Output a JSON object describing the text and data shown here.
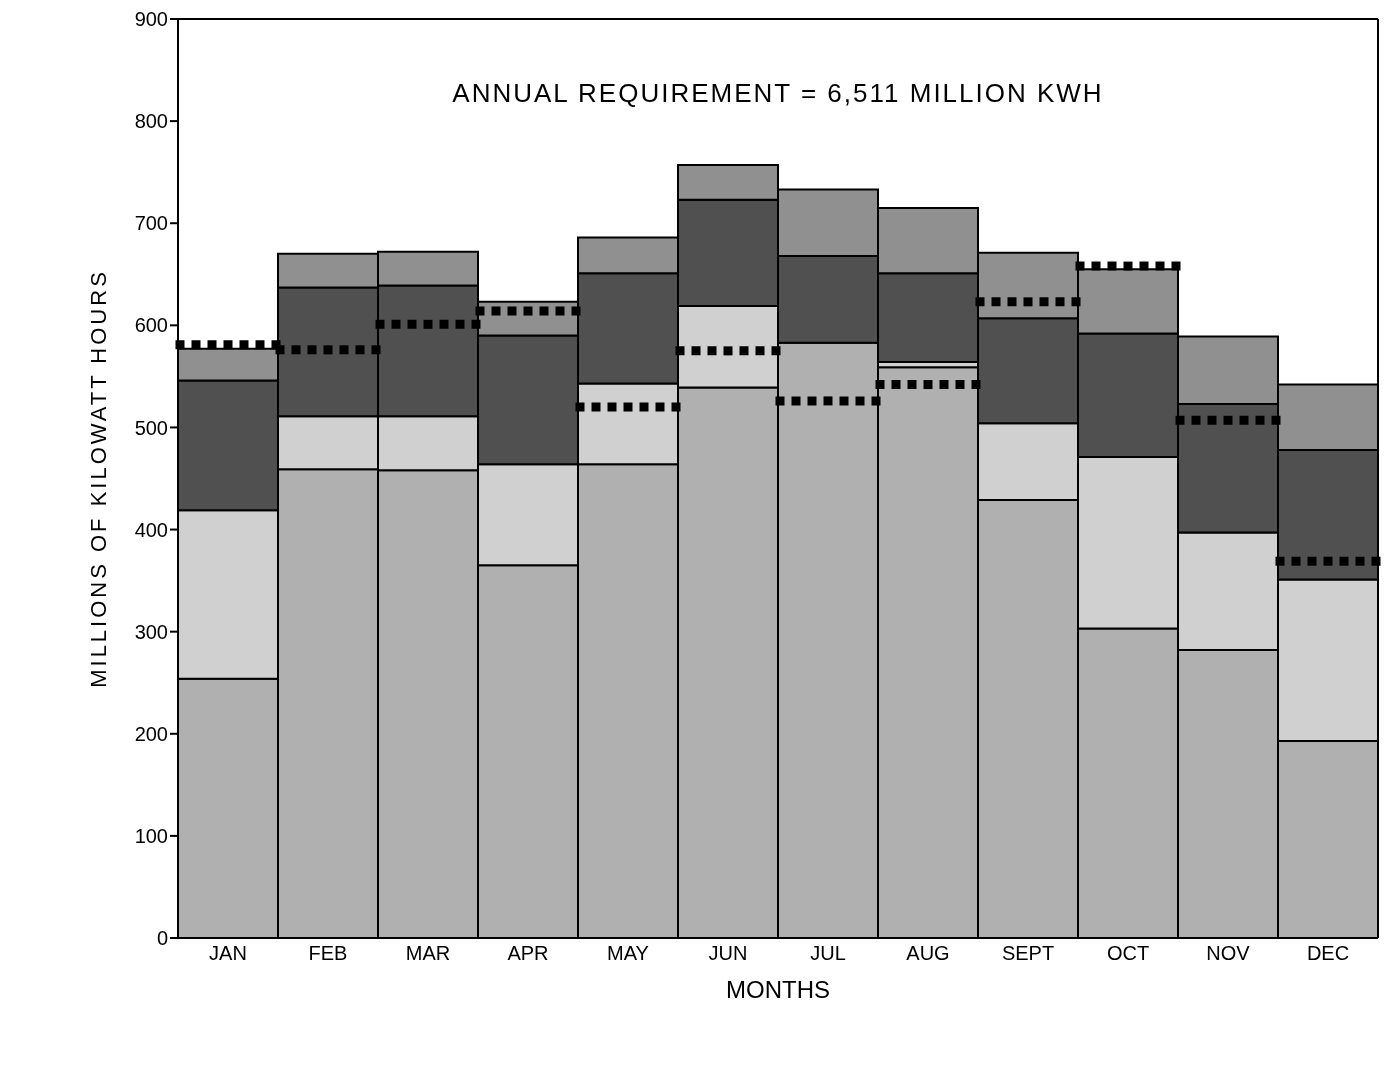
{
  "chart_data": {
    "type": "bar",
    "stacked": true,
    "xlabel": "MONTHS",
    "ylabel": "MILLIONS OF KILOWATT HOURS",
    "annotations": [
      "ANNUAL REQUIREMENT = 6,511 MILLION KWH"
    ],
    "categories": [
      "JAN",
      "FEB",
      "MAR",
      "APR",
      "MAY",
      "JUN",
      "JUL",
      "AUG",
      "SEPT",
      "OCT",
      "NOV",
      "DEC"
    ],
    "ylim": [
      0,
      900
    ],
    "yticks": [
      0,
      100,
      200,
      300,
      400,
      500,
      600,
      700,
      800,
      900
    ],
    "series": [
      {
        "color": "#b0b0b0",
        "values": [
          254,
          459,
          458,
          365,
          464,
          539,
          583,
          559,
          429,
          303,
          282,
          193
        ]
      },
      {
        "color": "#d0d0d0",
        "values": [
          165,
          52,
          53,
          99,
          79,
          80,
          0,
          5,
          75,
          168,
          115,
          158
        ]
      },
      {
        "color": "#505050",
        "values": [
          127,
          126,
          128,
          126,
          108,
          104,
          85,
          87,
          103,
          121,
          126,
          127
        ]
      },
      {
        "color": "#909090",
        "values": [
          31,
          33,
          33,
          33,
          35,
          34,
          65,
          64,
          64,
          63,
          66,
          64
        ]
      },
      {
        "type": "scatter",
        "color": "#000000",
        "marker": "square",
        "line_style": "dashed",
        "values": [
          581,
          576,
          601,
          614,
          520,
          575,
          526,
          542,
          623,
          658,
          507,
          369
        ]
      }
    ]
  }
}
